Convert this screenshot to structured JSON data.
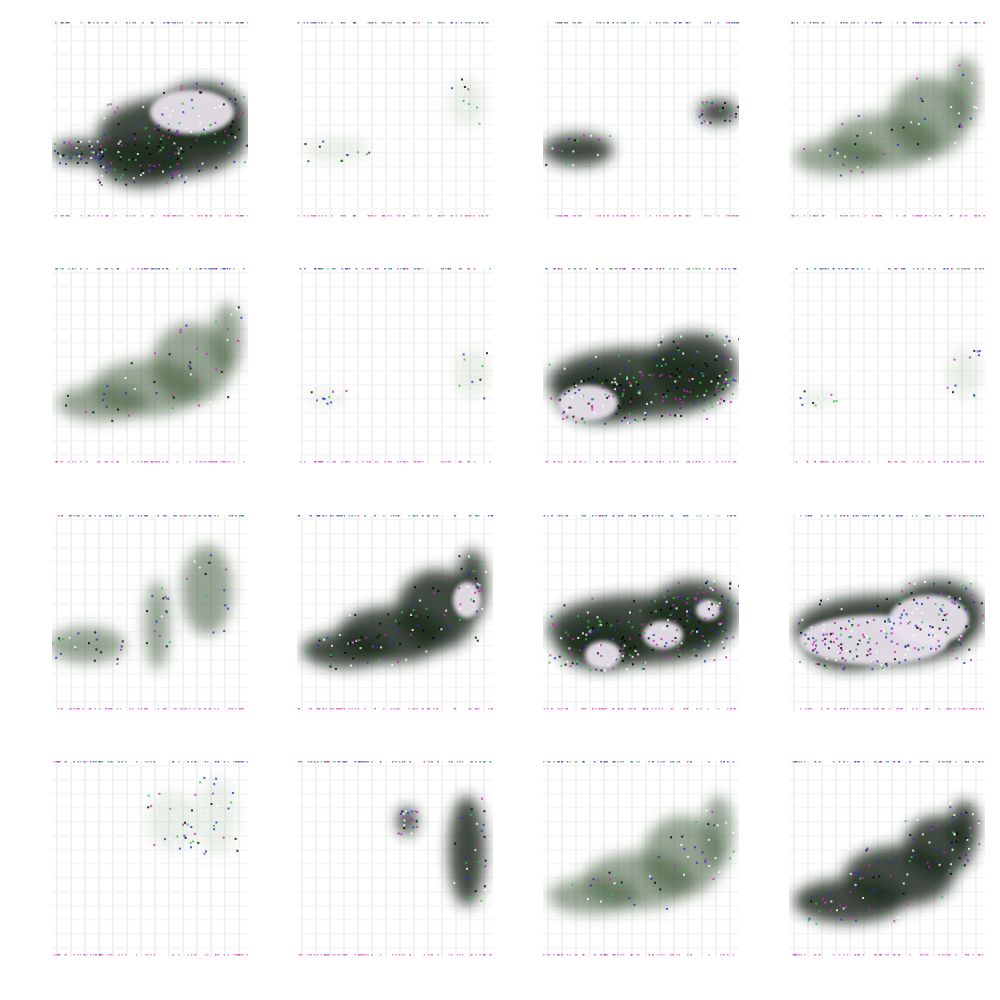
{
  "grid": {
    "rows": 4,
    "cols": 4
  },
  "colors": {
    "background": "#ffffff",
    "dark_blob": "#1e2a1c",
    "mid_blob": "#3f5a38",
    "light_blob": "#8aa882",
    "highlight": "#e8e2ea",
    "noise_magenta": "#d020c0",
    "noise_blue": "#2030d0",
    "noise_green": "#30c050",
    "frame_noise": "#b8a8c8"
  },
  "tiles": [
    {
      "name": "sample-1",
      "blobs": [
        {
          "type": "dark",
          "shape": "wide-center-upper"
        }
      ],
      "highlight": "upper-right",
      "noise": "dense"
    },
    {
      "name": "sample-2",
      "blobs": [
        {
          "type": "faint",
          "shape": "left-band"
        }
      ],
      "highlight": "none",
      "noise": "sparse"
    },
    {
      "name": "sample-3",
      "blobs": [
        {
          "type": "dark",
          "shape": "left-small"
        }
      ],
      "highlight": "none",
      "noise": "light"
    },
    {
      "name": "sample-4",
      "blobs": [
        {
          "type": "mid",
          "shape": "diagonal-rising"
        }
      ],
      "highlight": "none",
      "noise": "light"
    },
    {
      "name": "sample-5",
      "blobs": [
        {
          "type": "mid",
          "shape": "diagonal-rising"
        }
      ],
      "highlight": "none",
      "noise": "light"
    },
    {
      "name": "sample-6",
      "blobs": [
        {
          "type": "faint",
          "shape": "nearly-empty"
        }
      ],
      "highlight": "none",
      "noise": "sparse"
    },
    {
      "name": "sample-7",
      "blobs": [
        {
          "type": "dark",
          "shape": "shoe-wide"
        }
      ],
      "highlight": "left-oval",
      "noise": "dense"
    },
    {
      "name": "sample-8",
      "blobs": [
        {
          "type": "faint",
          "shape": "nearly-empty"
        }
      ],
      "highlight": "none",
      "noise": "sparse"
    },
    {
      "name": "sample-9",
      "blobs": [
        {
          "type": "mid",
          "shape": "left-and-columns"
        }
      ],
      "highlight": "none",
      "noise": "light"
    },
    {
      "name": "sample-10",
      "blobs": [
        {
          "type": "dark",
          "shape": "diagonal-rising"
        }
      ],
      "highlight": "right-speckle",
      "noise": "medium"
    },
    {
      "name": "sample-11",
      "blobs": [
        {
          "type": "dark",
          "shape": "shoe-wide"
        }
      ],
      "highlight": "speckle",
      "noise": "dense"
    },
    {
      "name": "sample-12",
      "blobs": [
        {
          "type": "dark",
          "shape": "shoe-wide"
        }
      ],
      "highlight": "large-oval",
      "noise": "dense"
    },
    {
      "name": "sample-13",
      "blobs": [
        {
          "type": "faint",
          "shape": "upper-right-columns"
        }
      ],
      "highlight": "none",
      "noise": "light"
    },
    {
      "name": "sample-14",
      "blobs": [
        {
          "type": "dark",
          "shape": "right-vertical"
        }
      ],
      "highlight": "none",
      "noise": "light"
    },
    {
      "name": "sample-15",
      "blobs": [
        {
          "type": "mid",
          "shape": "diagonal-rising"
        }
      ],
      "highlight": "none",
      "noise": "light"
    },
    {
      "name": "sample-16",
      "blobs": [
        {
          "type": "dark",
          "shape": "diagonal-rising-upper"
        }
      ],
      "highlight": "none",
      "noise": "medium"
    }
  ]
}
